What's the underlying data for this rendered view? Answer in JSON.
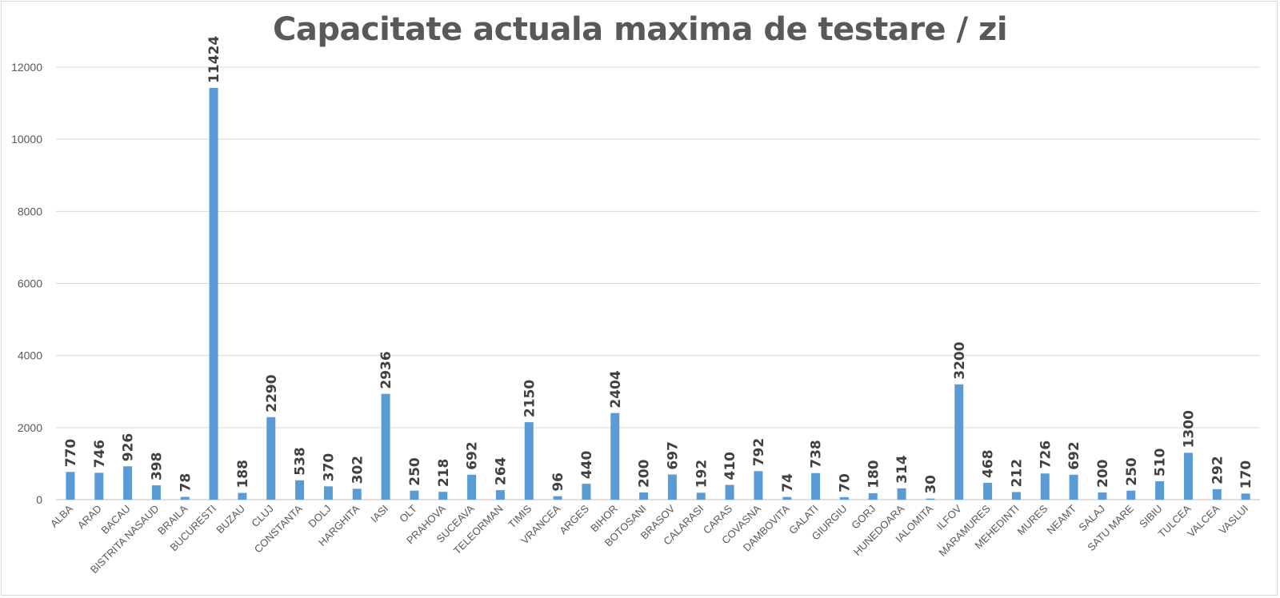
{
  "chart_data": {
    "type": "bar",
    "title": "Capacitate actuala maxima de testare / zi",
    "xlabel": "",
    "ylabel": "",
    "ylim": [
      0,
      12000
    ],
    "yticks": [
      0,
      2000,
      4000,
      6000,
      8000,
      10000,
      12000
    ],
    "grid": true,
    "legend": "none",
    "bar_color": "#5b9bd5",
    "categories": [
      "ALBA",
      "ARAD",
      "BACAU",
      "BISTRITA NASAUD",
      "BRAILA",
      "BUCURESTI",
      "BUZAU",
      "CLUJ",
      "CONSTANTA",
      "DOLJ",
      "HARGHITA",
      "IASI",
      "OLT",
      "PRAHOVA",
      "SUCEAVA",
      "TELEORMAN",
      "TIMIS",
      "VRANCEA",
      "ARGES",
      "BIHOR",
      "BOTOSANI",
      "BRASOV",
      "CALARASI",
      "CARAS",
      "COVASNA",
      "DAMBOVITA",
      "GALATI",
      "GIURGIU",
      "GORJ",
      "HUNEDOARA",
      "IALOMITA",
      "ILFOV",
      "MARAMURES",
      "MEHEDINTI",
      "MURES",
      "NEAMT",
      "SALAJ",
      "SATU MARE",
      "SIBIU",
      "TULCEA",
      "VALCEA",
      "VASLUI"
    ],
    "values": [
      770,
      746,
      926,
      398,
      78,
      11424,
      188,
      2290,
      538,
      370,
      302,
      2936,
      250,
      218,
      692,
      264,
      2150,
      96,
      440,
      2404,
      200,
      697,
      192,
      410,
      792,
      74,
      738,
      70,
      180,
      314,
      30,
      3200,
      468,
      212,
      726,
      692,
      200,
      250,
      510,
      1300,
      292,
      170
    ]
  }
}
